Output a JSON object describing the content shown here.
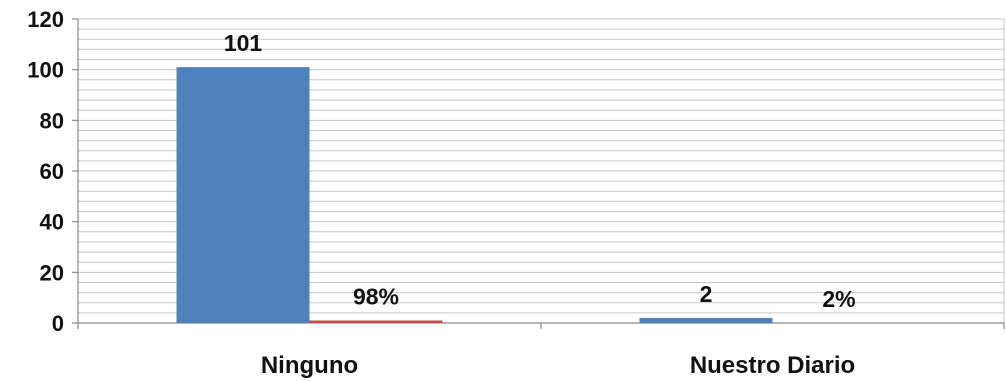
{
  "chart_data": {
    "type": "bar",
    "categories": [
      "Ninguno",
      "Nuestro Diario"
    ],
    "series": [
      {
        "values": [
          101,
          2
        ],
        "labels": [
          "101",
          "2"
        ],
        "color": "#4F81BD"
      },
      {
        "values": [
          1,
          0
        ],
        "labels": [
          "98%",
          "2%"
        ],
        "color": "#C0504D"
      }
    ],
    "ylim": [
      0,
      120
    ],
    "y_ticks": [
      0,
      20,
      40,
      60,
      80,
      100,
      120
    ],
    "minor_grid_step": 4,
    "grid": true,
    "legend": "none",
    "title": "",
    "xlabel": "",
    "ylabel": ""
  }
}
